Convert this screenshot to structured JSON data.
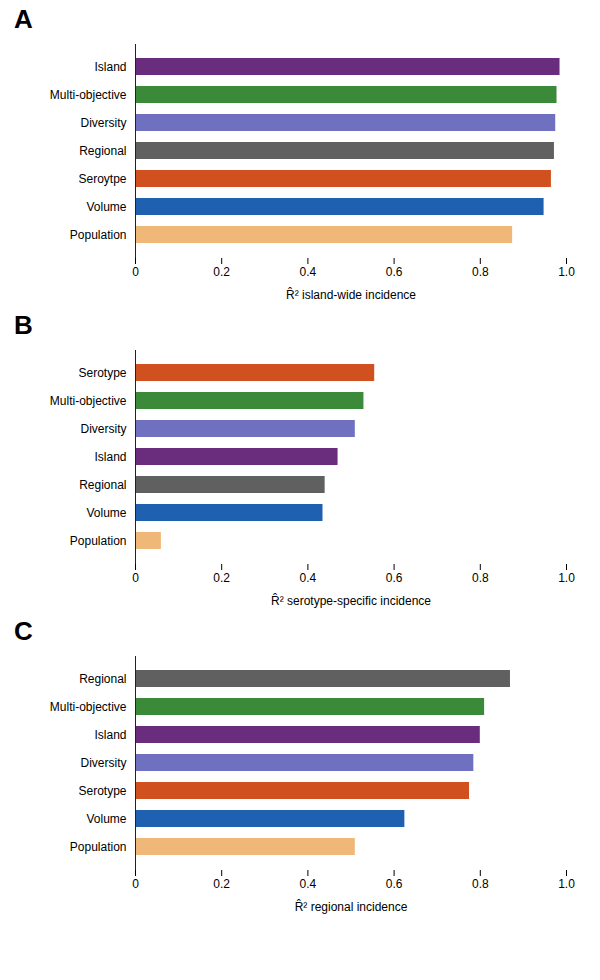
{
  "chart_data": [
    {
      "type": "bar",
      "orientation": "horizontal",
      "title": "A",
      "x_label": "R̂² island-wide incidence",
      "categories": [
        "Island",
        "Multi-objective",
        "Diversity",
        "Regional",
        "Seroytpe",
        "Volume",
        "Population"
      ],
      "values": [
        0.985,
        0.978,
        0.975,
        0.972,
        0.965,
        0.948,
        0.875
      ],
      "colors": [
        "#6a2d7e",
        "#3a8a3a",
        "#7070c0",
        "#606060",
        "#d05020",
        "#2060b0",
        "#f0b878"
      ],
      "xlim": [
        0,
        1.0
      ],
      "xticks": [
        0,
        0.2,
        0.4,
        0.6,
        0.8,
        {
          "value": 1.0,
          "label": "1.0"
        }
      ],
      "grid": false
    },
    {
      "type": "bar",
      "orientation": "horizontal",
      "title": "B",
      "x_label": "R̂² serotype-specific incidence",
      "categories": [
        "Serotype",
        "Multi-objective",
        "Diversity",
        "Island",
        "Regional",
        "Volume",
        "Population"
      ],
      "values": [
        0.555,
        0.53,
        0.51,
        0.47,
        0.44,
        0.435,
        0.06
      ],
      "colors": [
        "#d05020",
        "#3a8a3a",
        "#7070c0",
        "#6a2d7e",
        "#606060",
        "#2060b0",
        "#f0b878"
      ],
      "xlim": [
        0,
        1.0
      ],
      "xticks": [
        0,
        0.2,
        0.4,
        0.6,
        0.8,
        {
          "value": 1.0,
          "label": "1.0"
        }
      ],
      "grid": false
    },
    {
      "type": "bar",
      "orientation": "horizontal",
      "title": "C",
      "x_label": "R̂² regional incidence",
      "categories": [
        "Regional",
        "Multi-objective",
        "Island",
        "Diversity",
        "Serotype",
        "Volume",
        "Population"
      ],
      "values": [
        0.87,
        0.81,
        0.8,
        0.785,
        0.775,
        0.625,
        0.51
      ],
      "colors": [
        "#606060",
        "#3a8a3a",
        "#6a2d7e",
        "#7070c0",
        "#d05020",
        "#2060b0",
        "#f0b878"
      ],
      "xlim": [
        0,
        1.0
      ],
      "xticks": [
        0,
        0.2,
        0.4,
        0.6,
        0.8,
        {
          "value": 1.0,
          "label": "1.0"
        }
      ],
      "grid": false
    }
  ]
}
